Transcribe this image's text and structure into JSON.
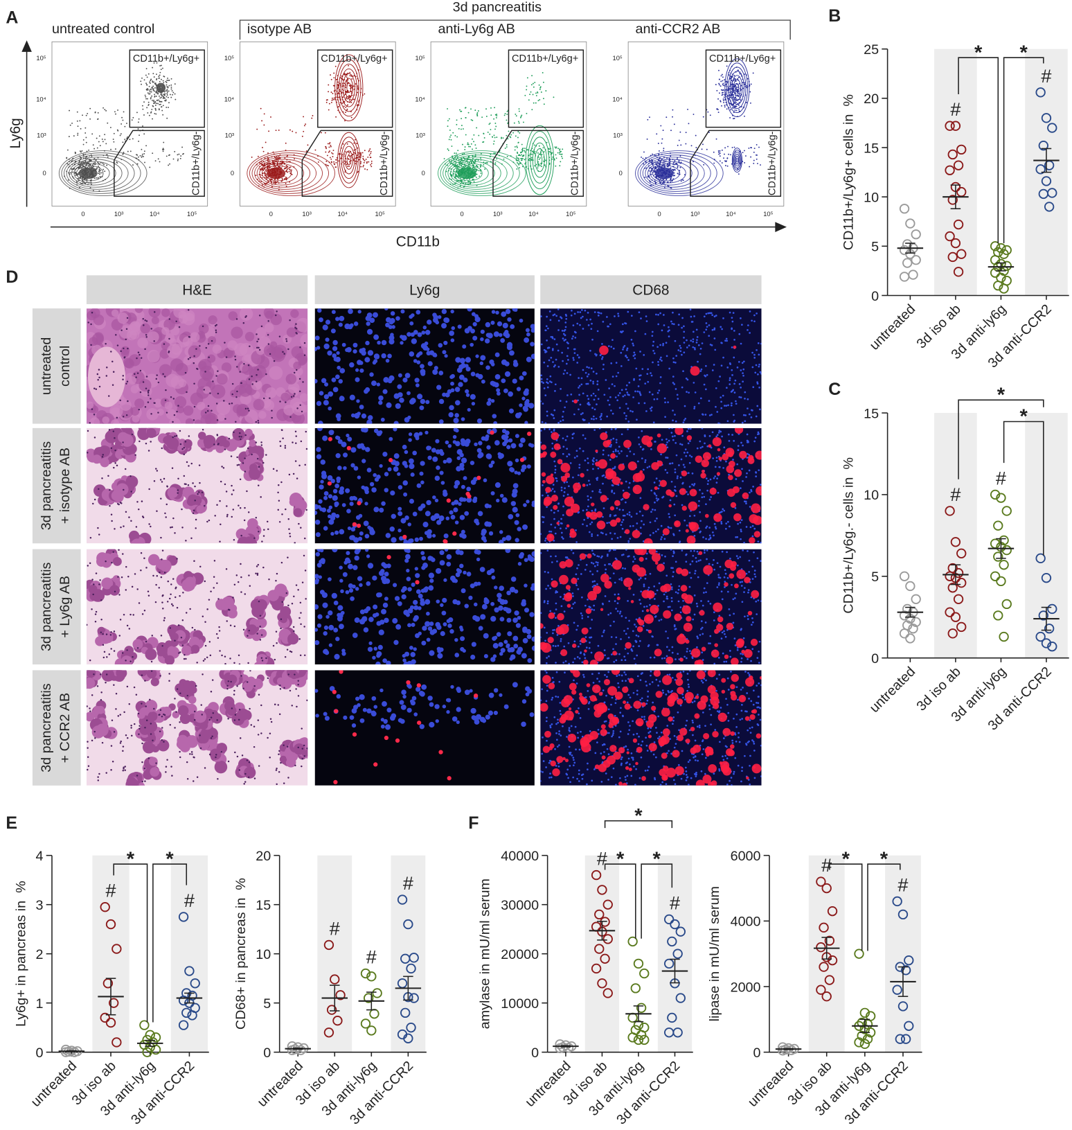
{
  "panel_labels": [
    "A",
    "B",
    "C",
    "D",
    "E",
    "F"
  ],
  "panel_a": {
    "group_title": "3d pancreatitis",
    "plots": [
      {
        "title": "untreated control",
        "color": "#4d4d4d"
      },
      {
        "title": "isotype AB",
        "color": "#9b1b1b"
      },
      {
        "title": "anti-Ly6g AB",
        "color": "#1f9e5a"
      },
      {
        "title": "anti-CCR2 AB",
        "color": "#2a2f9a"
      }
    ],
    "gate_high": "CD11b+/Ly6g+",
    "gate_low": "CD11b+/Ly6g-",
    "x_label": "CD11b",
    "y_label": "Ly6g",
    "ticks": [
      "0",
      "10³",
      "10⁴",
      "10⁵"
    ]
  },
  "panel_d": {
    "columns": [
      "H&E",
      "Ly6g",
      "CD68"
    ],
    "rows": [
      [
        "untreated",
        "control"
      ],
      [
        "3d pancreatitis",
        "+ isotype AB"
      ],
      [
        "3d pancreatitis",
        "+ Ly6g AB"
      ],
      [
        "3d pancreatitis",
        "+ CCR2 AB"
      ]
    ]
  },
  "chart_data": [
    {
      "type": "strip",
      "ylabel": "CD11b+/Ly6g+ cells in  %",
      "categories": [
        "untreated",
        "3d iso ab",
        "3d anti-ly6g",
        "3d anti-CCR2"
      ],
      "ylim": [
        0,
        25
      ],
      "yticks": [
        0,
        5,
        10,
        15,
        20,
        25
      ],
      "points": [
        [
          8.8,
          7.3,
          6.2,
          5.2,
          4.8,
          4.6,
          4.2,
          3.6,
          3.3,
          2.1,
          1.9
        ],
        [
          17.2,
          17.2,
          14.8,
          14.3,
          13.2,
          12.7,
          11.0,
          10.5,
          9.7,
          7.2,
          6.0,
          5.3,
          4.2,
          3.9,
          2.4
        ],
        [
          5.0,
          4.8,
          4.6,
          4.4,
          4.2,
          3.6,
          3.2,
          3.0,
          2.9,
          2.5,
          2.3,
          1.8,
          1.5,
          1.0,
          0.7
        ],
        [
          20.6,
          18.0,
          17.0,
          15.2,
          13.2,
          12.8,
          11.6,
          10.4,
          10.3,
          9.0
        ]
      ],
      "means": [
        4.8,
        10.0,
        2.9,
        13.7
      ],
      "sems": [
        0.5,
        1.2,
        0.4,
        1.2
      ],
      "colors": [
        "#9a9a9a",
        "#8b1a1a",
        "#5a7a1e",
        "#2a4a8a"
      ],
      "shaded": [
        1,
        3
      ],
      "hash_label": "#",
      "hash_groups": [
        1,
        3
      ],
      "brackets": [
        {
          "from": 1,
          "to": 2,
          "label": "*"
        },
        {
          "from": 2,
          "to": 3,
          "label": "*"
        }
      ]
    },
    {
      "type": "strip",
      "ylabel": "CD11b+/Ly6g.- cells in  %",
      "categories": [
        "untreated",
        "3d iso ab",
        "3d anti-ly6g",
        "3d anti-CCR2"
      ],
      "ylim": [
        0,
        15
      ],
      "yticks": [
        0,
        5,
        10,
        15
      ],
      "points": [
        [
          5.0,
          4.4,
          3.6,
          3.0,
          2.8,
          2.6,
          2.4,
          2.2,
          2.0,
          1.8,
          1.5,
          1.2
        ],
        [
          9.0,
          7.1,
          6.4,
          5.5,
          5.2,
          5.0,
          4.9,
          4.6,
          4.3,
          3.6,
          2.8,
          2.5,
          1.9,
          1.5
        ],
        [
          10.0,
          9.8,
          9.0,
          8.1,
          7.2,
          7.0,
          6.8,
          6.6,
          6.2,
          5.7,
          5.0,
          4.7,
          3.3,
          2.6,
          1.3
        ],
        [
          6.1,
          4.9,
          3.0,
          2.6,
          1.8,
          1.3,
          0.9,
          0.7
        ]
      ],
      "means": [
        2.8,
        5.1,
        6.7,
        2.4
      ],
      "sems": [
        0.3,
        0.6,
        0.6,
        0.7
      ],
      "colors": [
        "#9a9a9a",
        "#8b1a1a",
        "#5a7a1e",
        "#2a4a8a"
      ],
      "shaded": [
        1,
        3
      ],
      "hash_label": "#",
      "hash_groups": [
        1,
        2
      ],
      "brackets": [
        {
          "from": 1,
          "to": 3,
          "label": "*"
        },
        {
          "from": 2,
          "to": 3,
          "label": "*"
        }
      ]
    },
    {
      "type": "strip",
      "ylabel": "Ly6g+ in pancreas in  %",
      "categories": [
        "untreated",
        "3d iso ab",
        "3d anti-ly6g",
        "3d anti-CCR2"
      ],
      "ylim": [
        0,
        4
      ],
      "yticks": [
        0,
        1,
        2,
        3,
        4
      ],
      "points": [
        [
          0.05,
          0.03,
          0.02,
          0.01,
          0.0,
          0.0
        ],
        [
          2.95,
          2.6,
          2.1,
          1.4,
          1.0,
          0.7,
          0.6,
          0.2
        ],
        [
          0.55,
          0.35,
          0.3,
          0.25,
          0.2,
          0.15,
          0.1,
          0.05,
          0.0
        ],
        [
          2.75,
          1.65,
          1.4,
          1.2,
          1.15,
          1.05,
          1.0,
          0.9,
          0.8,
          0.75,
          0.55
        ]
      ],
      "means": [
        0.02,
        1.13,
        0.18,
        1.1
      ],
      "sems": [
        0.01,
        0.37,
        0.06,
        0.1
      ],
      "colors": [
        "#9a9a9a",
        "#8b1a1a",
        "#5a7a1e",
        "#2a4a8a"
      ],
      "shaded": [
        1,
        3
      ],
      "hash_label": "#",
      "hash_groups": [
        1,
        3
      ],
      "brackets": [
        {
          "from": 1,
          "to": 2,
          "label": "*"
        },
        {
          "from": 2,
          "to": 3,
          "label": "*"
        }
      ]
    },
    {
      "type": "strip",
      "ylabel": "CD68+ in pancreas in  %",
      "categories": [
        "untreated",
        "3d iso ab",
        "3d anti-ly6g",
        "3d anti-CCR2"
      ],
      "ylim": [
        0,
        20
      ],
      "yticks": [
        0,
        5,
        10,
        15,
        20
      ],
      "points": [
        [
          0.6,
          0.5,
          0.4,
          0.3,
          0.2,
          0.2
        ],
        [
          10.9,
          7.4,
          5.8,
          4.3,
          3.2,
          2.0
        ],
        [
          8.0,
          7.7,
          6.0,
          5.5,
          3.9,
          2.9,
          2.2
        ],
        [
          15.5,
          13.0,
          9.6,
          9.5,
          8.5,
          7.0,
          5.6,
          5.5,
          4.0,
          2.5,
          1.8,
          1.4
        ]
      ],
      "means": [
        0.35,
        5.5,
        5.2,
        6.5
      ],
      "sems": [
        0.06,
        1.3,
        0.9,
        1.2
      ],
      "colors": [
        "#9a9a9a",
        "#8b1a1a",
        "#5a7a1e",
        "#2a4a8a"
      ],
      "shaded": [
        1,
        3
      ],
      "hash_label": "#",
      "hash_groups": [
        1,
        2,
        3
      ],
      "brackets": []
    },
    {
      "type": "strip",
      "ylabel": "amylase in mU/ml serum",
      "categories": [
        "untreated",
        "3d iso ab",
        "3d anti-ly6g",
        "3d anti-CCR2"
      ],
      "ylim": [
        0,
        40000
      ],
      "yticks": [
        0,
        10000,
        20000,
        30000,
        40000
      ],
      "points": [
        [
          1600,
          1400,
          1200,
          1000,
          900,
          800
        ],
        [
          36000,
          33000,
          30000,
          28000,
          26500,
          25500,
          24500,
          23000,
          21000,
          19000,
          17000,
          14000,
          12000
        ],
        [
          22500,
          18000,
          16000,
          13000,
          9000,
          7000,
          5500,
          5000,
          4500,
          3500,
          3000,
          2500,
          2500
        ],
        [
          27000,
          26000,
          24500,
          22500,
          20000,
          18000,
          14000,
          11000,
          7000,
          4000,
          4000
        ]
      ],
      "means": [
        1200,
        24700,
        7800,
        16500
      ],
      "sems": [
        120,
        1900,
        1600,
        2400
      ],
      "colors": [
        "#9a9a9a",
        "#8b1a1a",
        "#5a7a1e",
        "#2a4a8a"
      ],
      "shaded": [
        1,
        3
      ],
      "hash_label": "#",
      "hash_groups": [
        1,
        3
      ],
      "brackets": [
        {
          "from": 1,
          "to": 3,
          "label": "*"
        },
        {
          "from": 1,
          "to": 2,
          "label": "*"
        },
        {
          "from": 2,
          "to": 3,
          "label": "*"
        }
      ]
    },
    {
      "type": "strip",
      "ylabel": "lipase in mU/ml serum",
      "categories": [
        "untreated",
        "3d iso ab",
        "3d anti-ly6g",
        "3d anti-CCR2"
      ],
      "ylim": [
        0,
        6000
      ],
      "yticks": [
        0,
        2000,
        4000,
        6000
      ],
      "points": [
        [
          150,
          120,
          100,
          80,
          60,
          50
        ],
        [
          5200,
          5000,
          4300,
          3800,
          3400,
          3200,
          2900,
          2800,
          2600,
          2200,
          1900,
          1700
        ],
        [
          3000,
          1200,
          1100,
          900,
          850,
          800,
          700,
          600,
          500,
          400,
          300,
          250
        ],
        [
          4600,
          4200,
          2800,
          2600,
          2500,
          1900,
          1400,
          800,
          400,
          400
        ]
      ],
      "means": [
        95,
        3170,
        800,
        2150
      ],
      "sems": [
        15,
        330,
        200,
        450
      ],
      "colors": [
        "#9a9a9a",
        "#8b1a1a",
        "#5a7a1e",
        "#2a4a8a"
      ],
      "shaded": [
        1,
        3
      ],
      "hash_label": "#",
      "hash_groups": [
        1,
        3
      ],
      "brackets": [
        {
          "from": 1,
          "to": 2,
          "label": "*"
        },
        {
          "from": 2,
          "to": 3,
          "label": "*"
        }
      ]
    }
  ]
}
